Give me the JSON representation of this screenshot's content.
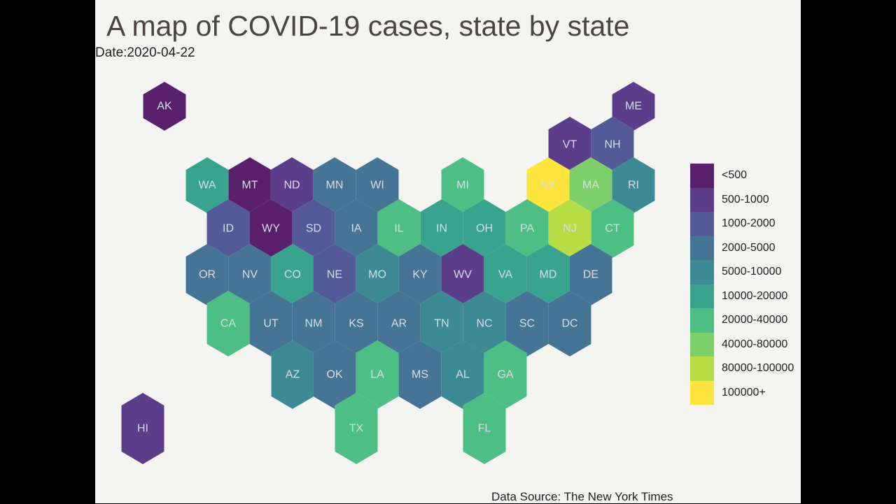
{
  "title": "A map of COVID-19 cases, state by state",
  "date_label": "Date:2020-04-22",
  "source": "Data Source: The New York Times",
  "chart_data": {
    "type": "hex-choropleth",
    "legend": [
      {
        "label": "<500",
        "color": "#58206b"
      },
      {
        "label": "500-1000",
        "color": "#5c3d8a"
      },
      {
        "label": "1000-2000",
        "color": "#545a98"
      },
      {
        "label": "2000-5000",
        "color": "#467495"
      },
      {
        "label": "5000-10000",
        "color": "#3c8a93"
      },
      {
        "label": "10000-20000",
        "color": "#39a48e"
      },
      {
        "label": "20000-40000",
        "color": "#4dbf85"
      },
      {
        "label": "40000-80000",
        "color": "#7dcf69"
      },
      {
        "label": "80000-100000",
        "color": "#b9de45"
      },
      {
        "label": "100000+",
        "color": "#fde53d"
      }
    ],
    "states": [
      {
        "abbr": "AK",
        "bin": "<500"
      },
      {
        "abbr": "ME",
        "bin": "500-1000"
      },
      {
        "abbr": "VT",
        "bin": "500-1000"
      },
      {
        "abbr": "NH",
        "bin": "1000-2000"
      },
      {
        "abbr": "WA",
        "bin": "10000-20000"
      },
      {
        "abbr": "MT",
        "bin": "<500"
      },
      {
        "abbr": "ND",
        "bin": "500-1000"
      },
      {
        "abbr": "MN",
        "bin": "2000-5000"
      },
      {
        "abbr": "WI",
        "bin": "2000-5000"
      },
      {
        "abbr": "MI",
        "bin": "20000-40000"
      },
      {
        "abbr": "NY",
        "bin": "100000+"
      },
      {
        "abbr": "MA",
        "bin": "40000-80000"
      },
      {
        "abbr": "RI",
        "bin": "5000-10000"
      },
      {
        "abbr": "ID",
        "bin": "1000-2000"
      },
      {
        "abbr": "WY",
        "bin": "<500"
      },
      {
        "abbr": "SD",
        "bin": "1000-2000"
      },
      {
        "abbr": "IA",
        "bin": "2000-5000"
      },
      {
        "abbr": "IL",
        "bin": "20000-40000"
      },
      {
        "abbr": "IN",
        "bin": "10000-20000"
      },
      {
        "abbr": "OH",
        "bin": "10000-20000"
      },
      {
        "abbr": "PA",
        "bin": "20000-40000"
      },
      {
        "abbr": "NJ",
        "bin": "80000-100000"
      },
      {
        "abbr": "CT",
        "bin": "20000-40000"
      },
      {
        "abbr": "OR",
        "bin": "2000-5000"
      },
      {
        "abbr": "NV",
        "bin": "2000-5000"
      },
      {
        "abbr": "CO",
        "bin": "10000-20000"
      },
      {
        "abbr": "NE",
        "bin": "1000-2000"
      },
      {
        "abbr": "MO",
        "bin": "5000-10000"
      },
      {
        "abbr": "KY",
        "bin": "2000-5000"
      },
      {
        "abbr": "WV",
        "bin": "500-1000"
      },
      {
        "abbr": "VA",
        "bin": "10000-20000"
      },
      {
        "abbr": "MD",
        "bin": "10000-20000"
      },
      {
        "abbr": "DE",
        "bin": "2000-5000"
      },
      {
        "abbr": "CA",
        "bin": "20000-40000"
      },
      {
        "abbr": "UT",
        "bin": "2000-5000"
      },
      {
        "abbr": "NM",
        "bin": "2000-5000"
      },
      {
        "abbr": "KS",
        "bin": "2000-5000"
      },
      {
        "abbr": "AR",
        "bin": "2000-5000"
      },
      {
        "abbr": "TN",
        "bin": "5000-10000"
      },
      {
        "abbr": "NC",
        "bin": "5000-10000"
      },
      {
        "abbr": "SC",
        "bin": "2000-5000"
      },
      {
        "abbr": "DC",
        "bin": "2000-5000"
      },
      {
        "abbr": "AZ",
        "bin": "5000-10000"
      },
      {
        "abbr": "OK",
        "bin": "2000-5000"
      },
      {
        "abbr": "LA",
        "bin": "20000-40000"
      },
      {
        "abbr": "MS",
        "bin": "2000-5000"
      },
      {
        "abbr": "AL",
        "bin": "5000-10000"
      },
      {
        "abbr": "GA",
        "bin": "20000-40000"
      },
      {
        "abbr": "TX",
        "bin": "20000-40000"
      },
      {
        "abbr": "FL",
        "bin": "20000-40000"
      },
      {
        "abbr": "HI",
        "bin": "500-1000"
      }
    ]
  }
}
